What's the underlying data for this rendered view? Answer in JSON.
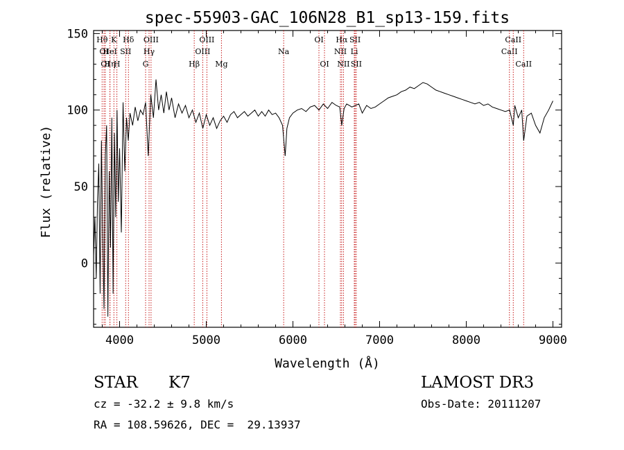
{
  "chart_data": {
    "type": "line",
    "title": "spec-55903-GAC_106N28_B1_sp13-159.fits",
    "xlabel": "Wavelength (Å)",
    "ylabel": "Flux (relative)",
    "xlim": [
      3700,
      9100
    ],
    "ylim": [
      -42,
      152
    ],
    "x_ticks": [
      4000,
      5000,
      6000,
      7000,
      8000,
      9000
    ],
    "y_ticks": [
      0,
      50,
      100,
      150
    ],
    "grid": false,
    "line_color": "#000000",
    "marker_color": "#c00000",
    "series": [
      {
        "x": [
          3700,
          3715,
          3730,
          3745,
          3760,
          3775,
          3790,
          3805,
          3820,
          3835,
          3850,
          3865,
          3880,
          3895,
          3910,
          3925,
          3940,
          3955,
          3970,
          3985,
          4000,
          4020,
          4040,
          4060,
          4080,
          4100,
          4120,
          4150,
          4180,
          4210,
          4240,
          4270,
          4300,
          4330,
          4360,
          4390,
          4420,
          4450,
          4480,
          4510,
          4540,
          4570,
          4600,
          4640,
          4680,
          4720,
          4760,
          4800,
          4840,
          4880,
          4920,
          4960,
          5000,
          5040,
          5080,
          5120,
          5160,
          5200,
          5240,
          5280,
          5320,
          5360,
          5400,
          5440,
          5480,
          5520,
          5560,
          5600,
          5640,
          5680,
          5720,
          5760,
          5800,
          5840,
          5880,
          5910,
          5930,
          5960,
          6000,
          6050,
          6100,
          6150,
          6200,
          6250,
          6300,
          6350,
          6400,
          6450,
          6500,
          6540,
          6563,
          6590,
          6620,
          6650,
          6680,
          6720,
          6760,
          6800,
          6850,
          6900,
          6950,
          7000,
          7050,
          7100,
          7150,
          7200,
          7250,
          7300,
          7350,
          7400,
          7450,
          7500,
          7550,
          7600,
          7650,
          7700,
          7750,
          7800,
          7850,
          7900,
          7950,
          8000,
          8050,
          8100,
          8150,
          8200,
          8250,
          8300,
          8350,
          8400,
          8450,
          8500,
          8542,
          8560,
          8600,
          8640,
          8662,
          8700,
          8750,
          8800,
          8850,
          8900,
          8950,
          9000
        ],
        "y": [
          5,
          30,
          -10,
          40,
          65,
          -20,
          80,
          20,
          -30,
          70,
          90,
          -35,
          60,
          10,
          95,
          -20,
          85,
          30,
          100,
          40,
          75,
          20,
          105,
          60,
          95,
          80,
          98,
          90,
          102,
          93,
          100,
          97,
          105,
          70,
          110,
          95,
          120,
          100,
          110,
          98,
          112,
          100,
          108,
          95,
          104,
          98,
          103,
          95,
          100,
          92,
          98,
          88,
          97,
          90,
          95,
          88,
          93,
          96,
          92,
          97,
          99,
          95,
          97,
          99,
          96,
          98,
          100,
          96,
          99,
          96,
          100,
          97,
          98,
          95,
          90,
          70,
          88,
          95,
          98,
          100,
          101,
          99,
          102,
          103,
          100,
          104,
          101,
          105,
          103,
          102,
          90,
          101,
          104,
          103,
          102,
          103,
          104,
          98,
          103,
          101,
          102,
          104,
          106,
          108,
          109,
          110,
          112,
          113,
          115,
          114,
          116,
          118,
          117,
          115,
          113,
          112,
          111,
          110,
          109,
          108,
          107,
          106,
          105,
          104,
          105,
          103,
          104,
          102,
          101,
          100,
          99,
          100,
          90,
          103,
          95,
          100,
          80,
          96,
          98,
          90,
          85,
          95,
          100,
          106
        ]
      }
    ],
    "lines": [
      {
        "wavelength": 3798,
        "label": "Hθ",
        "row": 1
      },
      {
        "wavelength": 3820,
        "label": "OI",
        "row": 2
      },
      {
        "wavelength": 3835,
        "label": "OI",
        "row": 3
      },
      {
        "wavelength": 3889,
        "label": "Hη",
        "row": 3
      },
      {
        "wavelength": 3889,
        "label": "HeI",
        "row": 2
      },
      {
        "wavelength": 3934,
        "label": "K",
        "row": 1
      },
      {
        "wavelength": 3969,
        "label": "H",
        "row": 3
      },
      {
        "wavelength": 4070,
        "label": "SII",
        "row": 2
      },
      {
        "wavelength": 4102,
        "label": "Hδ",
        "row": 1
      },
      {
        "wavelength": 4300,
        "label": "G",
        "row": 3
      },
      {
        "wavelength": 4340,
        "label": "Hγ",
        "row": 2
      },
      {
        "wavelength": 4363,
        "label": "OIII",
        "row": 1
      },
      {
        "wavelength": 4861,
        "label": "Hβ",
        "row": 3
      },
      {
        "wavelength": 4959,
        "label": "OIII",
        "row": 2
      },
      {
        "wavelength": 5007,
        "label": "OIII",
        "row": 1
      },
      {
        "wavelength": 5175,
        "label": "Mg",
        "row": 3
      },
      {
        "wavelength": 5893,
        "label": "Na",
        "row": 2
      },
      {
        "wavelength": 6300,
        "label": "OI",
        "row": 1
      },
      {
        "wavelength": 6364,
        "label": "OI",
        "row": 3
      },
      {
        "wavelength": 6548,
        "label": "NII",
        "row": 2
      },
      {
        "wavelength": 6563,
        "label": "Hα",
        "row": 1
      },
      {
        "wavelength": 6583,
        "label": "NII",
        "row": 3
      },
      {
        "wavelength": 6708,
        "label": "Li",
        "row": 2
      },
      {
        "wavelength": 6717,
        "label": "SII",
        "row": 1
      },
      {
        "wavelength": 6731,
        "label": "SII",
        "row": 3
      },
      {
        "wavelength": 8498,
        "label": "CaII",
        "row": 2
      },
      {
        "wavelength": 8542,
        "label": "CaII",
        "row": 1
      },
      {
        "wavelength": 8662,
        "label": "CaII",
        "row": 3
      }
    ]
  },
  "info": {
    "object_class": "STAR",
    "subclass": "K7",
    "cz": "cz = -32.2 ± 9.8 km/s",
    "coords": "RA = 108.59626, DEC =  29.13937",
    "survey": "LAMOST DR3",
    "obs_date": "Obs-Date: 20111207"
  }
}
